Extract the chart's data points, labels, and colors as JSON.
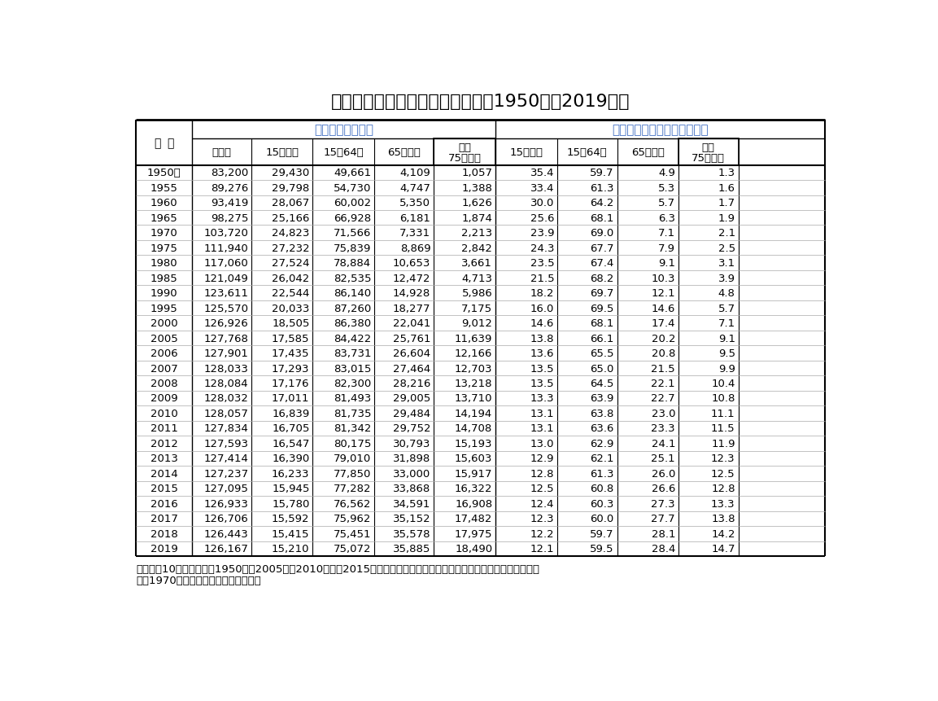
{
  "title": "表４　年齢３区分別人口の推移（1950年～2019年）",
  "header_row1_left": "人　口　（千人）",
  "header_row1_right": "総人口に占める割合　（％）",
  "col_labels": [
    "総　数",
    "15歳未満",
    "15～64歳",
    "65歳以上",
    "うち\n75歳以上",
    "15歳未満",
    "15～64歳",
    "65歳以上",
    "うち\n75歳以上"
  ],
  "year_label": [
    "年",
    "次"
  ],
  "rows": [
    [
      "1950年",
      "83,200",
      "29,430",
      "49,661",
      "4,109",
      "1,057",
      "35.4",
      "59.7",
      "4.9",
      "1.3"
    ],
    [
      "1955",
      "89,276",
      "29,798",
      "54,730",
      "4,747",
      "1,388",
      "33.4",
      "61.3",
      "5.3",
      "1.6"
    ],
    [
      "1960",
      "93,419",
      "28,067",
      "60,002",
      "5,350",
      "1,626",
      "30.0",
      "64.2",
      "5.7",
      "1.7"
    ],
    [
      "1965",
      "98,275",
      "25,166",
      "66,928",
      "6,181",
      "1,874",
      "25.6",
      "68.1",
      "6.3",
      "1.9"
    ],
    [
      "1970",
      "103,720",
      "24,823",
      "71,566",
      "7,331",
      "2,213",
      "23.9",
      "69.0",
      "7.1",
      "2.1"
    ],
    [
      "1975",
      "111,940",
      "27,232",
      "75,839",
      "8,869",
      "2,842",
      "24.3",
      "67.7",
      "7.9",
      "2.5"
    ],
    [
      "1980",
      "117,060",
      "27,524",
      "78,884",
      "10,653",
      "3,661",
      "23.5",
      "67.4",
      "9.1",
      "3.1"
    ],
    [
      "1985",
      "121,049",
      "26,042",
      "82,535",
      "12,472",
      "4,713",
      "21.5",
      "68.2",
      "10.3",
      "3.9"
    ],
    [
      "1990",
      "123,611",
      "22,544",
      "86,140",
      "14,928",
      "5,986",
      "18.2",
      "69.7",
      "12.1",
      "4.8"
    ],
    [
      "1995",
      "125,570",
      "20,033",
      "87,260",
      "18,277",
      "7,175",
      "16.0",
      "69.5",
      "14.6",
      "5.7"
    ],
    [
      "2000",
      "126,926",
      "18,505",
      "86,380",
      "22,041",
      "9,012",
      "14.6",
      "68.1",
      "17.4",
      "7.1"
    ],
    [
      "2005",
      "127,768",
      "17,585",
      "84,422",
      "25,761",
      "11,639",
      "13.8",
      "66.1",
      "20.2",
      "9.1"
    ],
    [
      "2006",
      "127,901",
      "17,435",
      "83,731",
      "26,604",
      "12,166",
      "13.6",
      "65.5",
      "20.8",
      "9.5"
    ],
    [
      "2007",
      "128,033",
      "17,293",
      "83,015",
      "27,464",
      "12,703",
      "13.5",
      "65.0",
      "21.5",
      "9.9"
    ],
    [
      "2008",
      "128,084",
      "17,176",
      "82,300",
      "28,216",
      "13,218",
      "13.5",
      "64.5",
      "22.1",
      "10.4"
    ],
    [
      "2009",
      "128,032",
      "17,011",
      "81,493",
      "29,005",
      "13,710",
      "13.3",
      "63.9",
      "22.7",
      "10.8"
    ],
    [
      "2010",
      "128,057",
      "16,839",
      "81,735",
      "29,484",
      "14,194",
      "13.1",
      "63.8",
      "23.0",
      "11.1"
    ],
    [
      "2011",
      "127,834",
      "16,705",
      "81,342",
      "29,752",
      "14,708",
      "13.1",
      "63.6",
      "23.3",
      "11.5"
    ],
    [
      "2012",
      "127,593",
      "16,547",
      "80,175",
      "30,793",
      "15,193",
      "13.0",
      "62.9",
      "24.1",
      "11.9"
    ],
    [
      "2013",
      "127,414",
      "16,390",
      "79,010",
      "31,898",
      "15,603",
      "12.9",
      "62.1",
      "25.1",
      "12.3"
    ],
    [
      "2014",
      "127,237",
      "16,233",
      "77,850",
      "33,000",
      "15,917",
      "12.8",
      "61.3",
      "26.0",
      "12.5"
    ],
    [
      "2015",
      "127,095",
      "15,945",
      "77,282",
      "33,868",
      "16,322",
      "12.5",
      "60.8",
      "26.6",
      "12.8"
    ],
    [
      "2016",
      "126,933",
      "15,780",
      "76,562",
      "34,591",
      "16,908",
      "12.4",
      "60.3",
      "27.3",
      "13.3"
    ],
    [
      "2017",
      "126,706",
      "15,592",
      "75,962",
      "35,152",
      "17,482",
      "12.3",
      "60.0",
      "27.7",
      "13.8"
    ],
    [
      "2018",
      "126,443",
      "15,415",
      "75,451",
      "35,578",
      "17,975",
      "12.2",
      "59.7",
      "28.1",
      "14.2"
    ],
    [
      "2019",
      "126,167",
      "15,210",
      "75,072",
      "35,885",
      "18,490",
      "12.1",
      "59.5",
      "28.4",
      "14.7"
    ]
  ],
  "note_line1": "注）各年10月１日現在。1950年～2005年，2010年及び2015年は国勢調査人口（年齢不詳をあん分した人口）による。",
  "note_line2": "　　1970年までは沖縄県を含まない。",
  "bg_color": "#ffffff",
  "text_color": "#000000",
  "header_text_color": "#4472c4",
  "line_color": "#000000"
}
